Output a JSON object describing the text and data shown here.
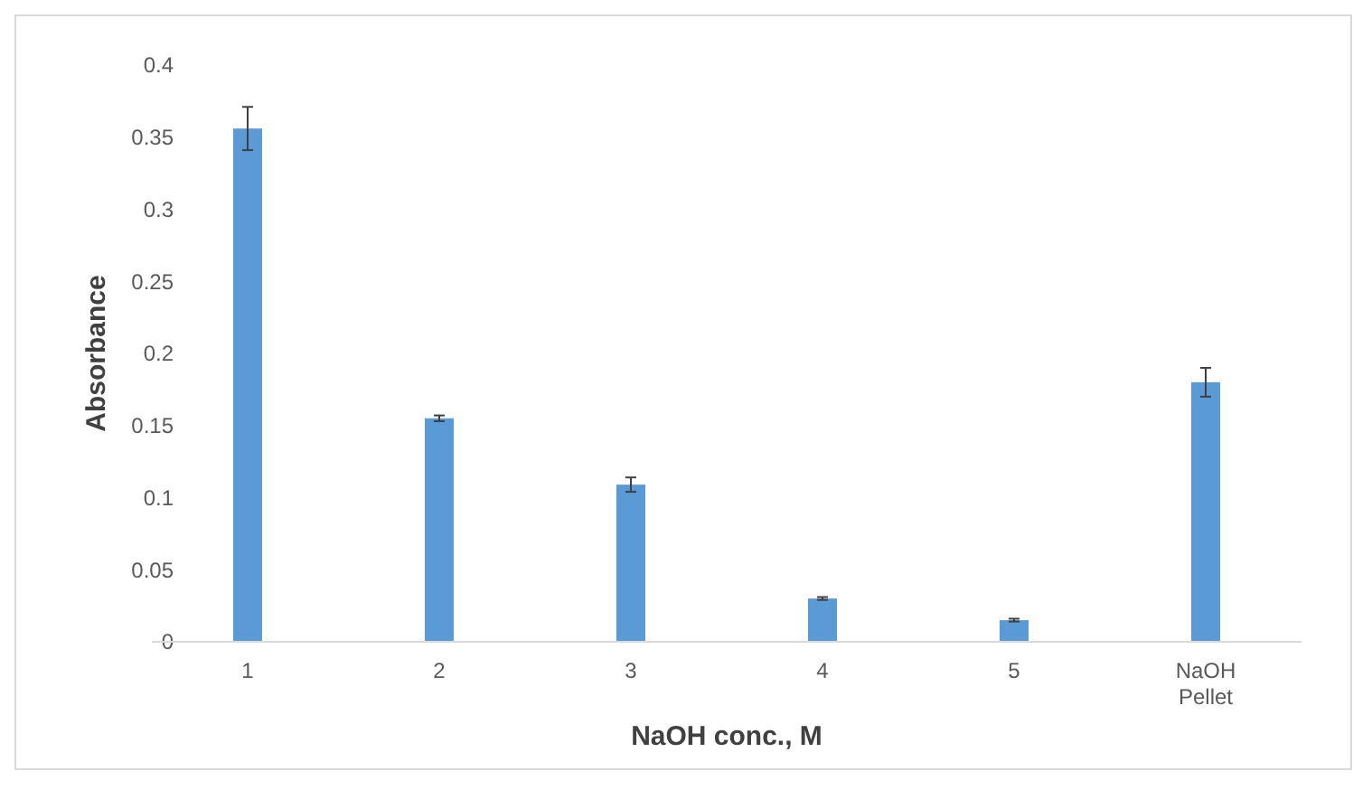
{
  "chart_data": {
    "type": "bar",
    "xlabel": "NaOH conc., M",
    "ylabel": "Absorbance",
    "categories": [
      "1",
      "2",
      "3",
      "4",
      "5",
      "NaOH Pellet"
    ],
    "values": [
      0.356,
      0.155,
      0.109,
      0.03,
      0.015,
      0.18
    ],
    "errors": [
      0.015,
      0.002,
      0.005,
      0.001,
      0.001,
      0.01
    ],
    "color": "#5b9bd5",
    "ylim": [
      0,
      0.4
    ],
    "yticks": [
      0,
      0.05,
      0.1,
      0.15,
      0.2,
      0.25,
      0.3,
      0.35,
      0.4
    ],
    "grid": false
  }
}
